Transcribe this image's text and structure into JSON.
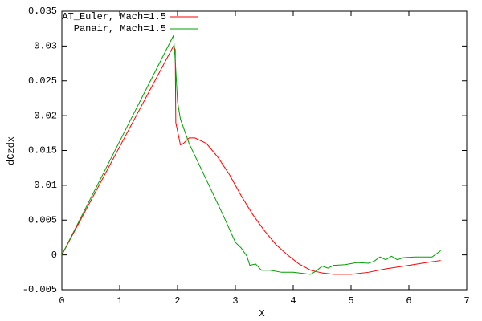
{
  "chart_data": {
    "type": "line",
    "xlabel": "X",
    "ylabel": "dCzdx",
    "xlim": [
      0,
      7
    ],
    "xticks": [
      0,
      1,
      2,
      3,
      4,
      5,
      6,
      7
    ],
    "ylim": [
      -0.005,
      0.035
    ],
    "yticks": [
      -0.005,
      0,
      0.005,
      0.01,
      0.015,
      0.02,
      0.025,
      0.03,
      0.035
    ],
    "legend": "top-left",
    "series": [
      {
        "name": "AT_Euler, Mach=1.5",
        "color": "#ff0000",
        "x": [
          0,
          1.93,
          1.96,
          1.97,
          2.05,
          2.1,
          2.2,
          2.3,
          2.5,
          2.7,
          2.9,
          3.1,
          3.3,
          3.5,
          3.7,
          3.9,
          4.1,
          4.3,
          4.5,
          4.7,
          5.0,
          5.3,
          5.6,
          6.0,
          6.3,
          6.55
        ],
        "values": [
          0,
          0.03,
          0.0295,
          0.019,
          0.0158,
          0.016,
          0.0168,
          0.0168,
          0.016,
          0.014,
          0.0115,
          0.0085,
          0.0058,
          0.0035,
          0.0015,
          0,
          -0.0013,
          -0.0022,
          -0.0026,
          -0.0028,
          -0.0028,
          -0.0025,
          -0.002,
          -0.0015,
          -0.0011,
          -0.0008
        ]
      },
      {
        "name": "Panair, Mach=1.5",
        "color": "#00a000",
        "x": [
          0,
          1.93,
          1.96,
          2.0,
          2.05,
          2.2,
          2.4,
          2.6,
          2.8,
          3.0,
          3.1,
          3.2,
          3.25,
          3.35,
          3.45,
          3.6,
          3.8,
          4.0,
          4.2,
          4.3,
          4.4,
          4.5,
          4.6,
          4.7,
          4.9,
          5.1,
          5.3,
          5.4,
          5.5,
          5.6,
          5.7,
          5.8,
          5.9,
          6.1,
          6.4,
          6.55
        ],
        "values": [
          0,
          0.0315,
          0.028,
          0.022,
          0.0195,
          0.016,
          0.0125,
          0.009,
          0.0055,
          0.0018,
          0.001,
          -0.0002,
          -0.0015,
          -0.0013,
          -0.0022,
          -0.0022,
          -0.0025,
          -0.0025,
          -0.0027,
          -0.0028,
          -0.0023,
          -0.0016,
          -0.0019,
          -0.0015,
          -0.0014,
          -0.0011,
          -0.0012,
          -0.0009,
          -0.0003,
          -0.0007,
          -0.0002,
          -0.0007,
          -0.0004,
          -0.0003,
          -0.0003,
          0.0006
        ]
      }
    ]
  }
}
